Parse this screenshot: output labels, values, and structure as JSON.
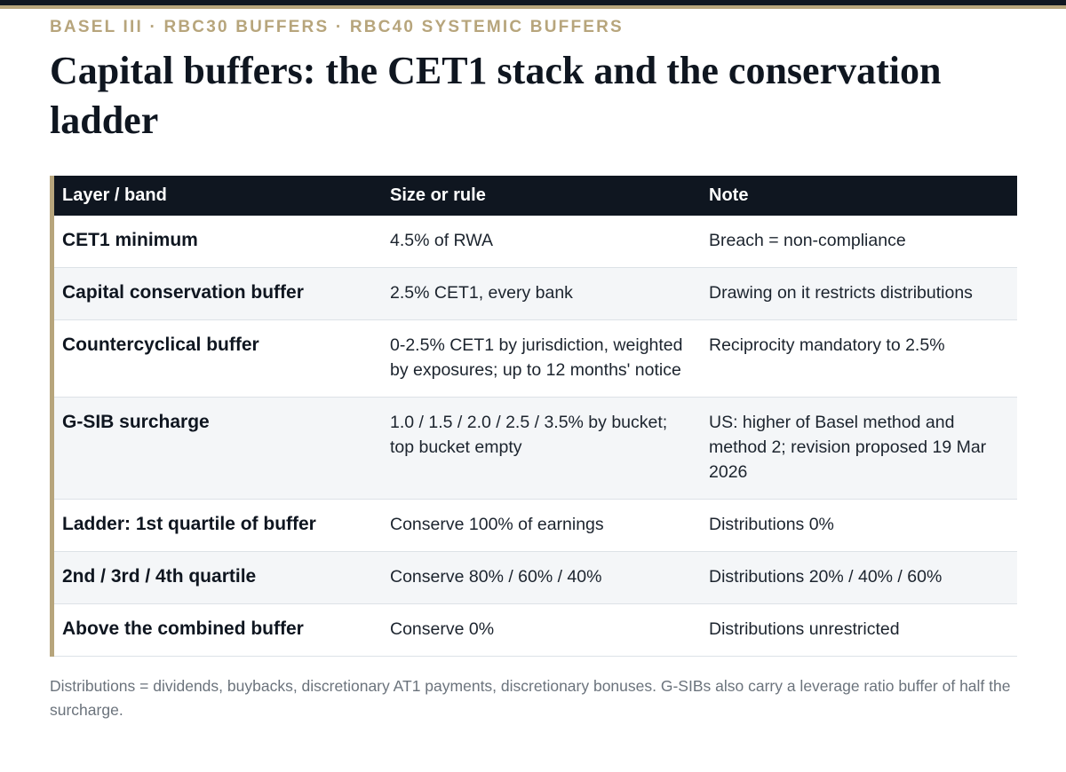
{
  "header": {
    "kicker": "BASEL III · RBC30 BUFFERS · RBC40 SYSTEMIC BUFFERS",
    "title": "Capital buffers: the CET1 stack and the conservation ladder"
  },
  "table": {
    "columns": [
      "Layer / band",
      "Size or rule",
      "Note"
    ],
    "rows": [
      {
        "layer": "CET1 minimum",
        "rule": "4.5% of RWA",
        "note": "Breach = non-compliance"
      },
      {
        "layer": "Capital conservation buffer",
        "rule": "2.5% CET1, every bank",
        "note": "Drawing on it restricts distributions"
      },
      {
        "layer": "Countercyclical buffer",
        "rule": "0-2.5% CET1 by jurisdiction, weighted by exposures; up to 12 months' notice",
        "note": "Reciprocity mandatory to 2.5%"
      },
      {
        "layer": "G-SIB surcharge",
        "rule": "1.0 / 1.5 / 2.0 / 2.5 / 3.5% by bucket; top bucket empty",
        "note": "US: higher of Basel method and method 2; revision proposed 19 Mar 2026"
      },
      {
        "layer": "Ladder: 1st quartile of buffer",
        "rule": "Conserve 100% of earnings",
        "note": "Distributions 0%"
      },
      {
        "layer": "2nd / 3rd / 4th quartile",
        "rule": "Conserve 80% / 60% / 40%",
        "note": "Distributions 20% / 40% / 60%"
      },
      {
        "layer": "Above the combined buffer",
        "rule": "Conserve 0%",
        "note": "Distributions unrestricted"
      }
    ]
  },
  "footnote": "Distributions = dividends, buybacks, discretionary AT1 payments, discretionary bonuses. G-SIBs also carry a leverage ratio buffer of half the surcharge.",
  "colors": {
    "accent": "#b7a57c",
    "header_bg": "#0f1620",
    "zebra": "#f4f6f8",
    "footnote_text": "#6b737c"
  }
}
